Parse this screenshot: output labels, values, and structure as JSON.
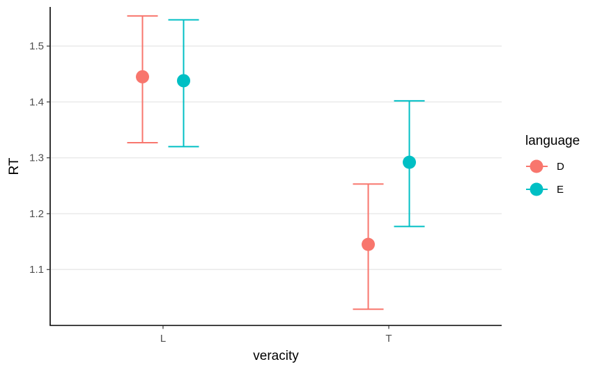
{
  "chart_data": {
    "type": "scatter",
    "subtype": "point-with-errorbars",
    "xlabel": "veracity",
    "ylabel": "RT",
    "categories": [
      "L",
      "T"
    ],
    "ylim": [
      1.0,
      1.57
    ],
    "yticks": [
      1.1,
      1.2,
      1.3,
      1.4,
      1.5
    ],
    "ytick_labels": [
      "1.1",
      "1.2",
      "1.3",
      "1.4",
      "1.5"
    ],
    "grid": "horizontal major",
    "legend": {
      "title": "language",
      "position": "right"
    },
    "series": [
      {
        "name": "D",
        "color": "#F8766D",
        "values": [
          1.445,
          1.145
        ],
        "lower": [
          1.327,
          1.029
        ],
        "upper": [
          1.554,
          1.253
        ]
      },
      {
        "name": "E",
        "color": "#00BFC4",
        "values": [
          1.438,
          1.292
        ],
        "lower": [
          1.32,
          1.177
        ],
        "upper": [
          1.547,
          1.402
        ]
      }
    ]
  }
}
